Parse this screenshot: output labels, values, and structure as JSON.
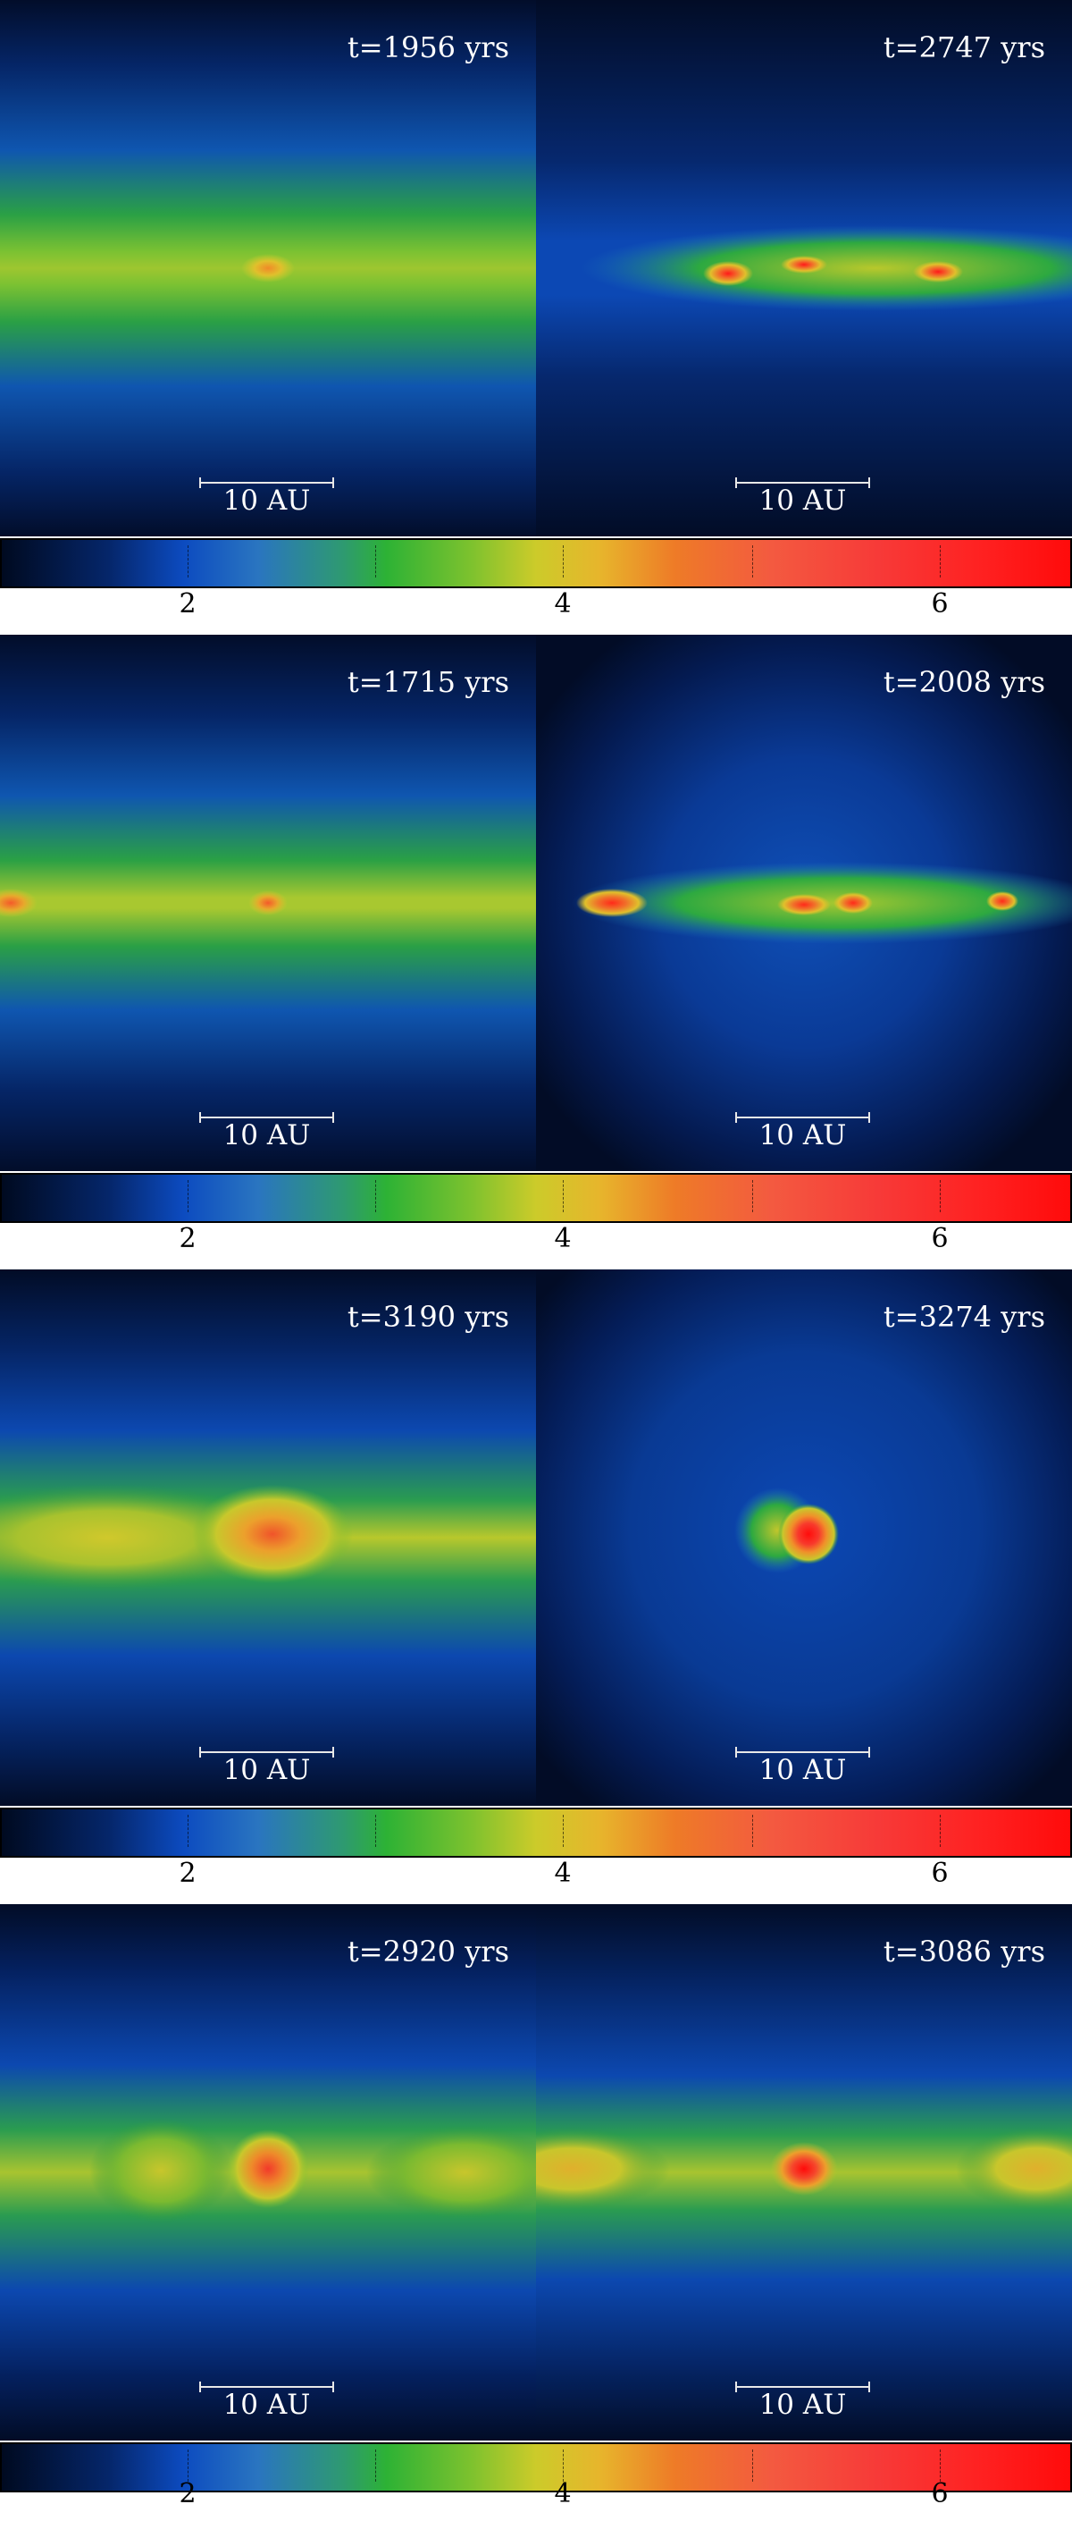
{
  "colorbar_labels": [
    "2",
    "4",
    "6"
  ],
  "scale_label": "10 AU",
  "rows": [
    {
      "left_time": "t=1956 yrs",
      "right_time": "t=2747 yrs"
    },
    {
      "left_time": "t=1715 yrs",
      "right_time": "t=2008 yrs"
    },
    {
      "left_time": "t=3190 yrs",
      "right_time": "t=3274 yrs"
    },
    {
      "left_time": "t=2920 yrs",
      "right_time": "t=3086 yrs"
    }
  ]
}
